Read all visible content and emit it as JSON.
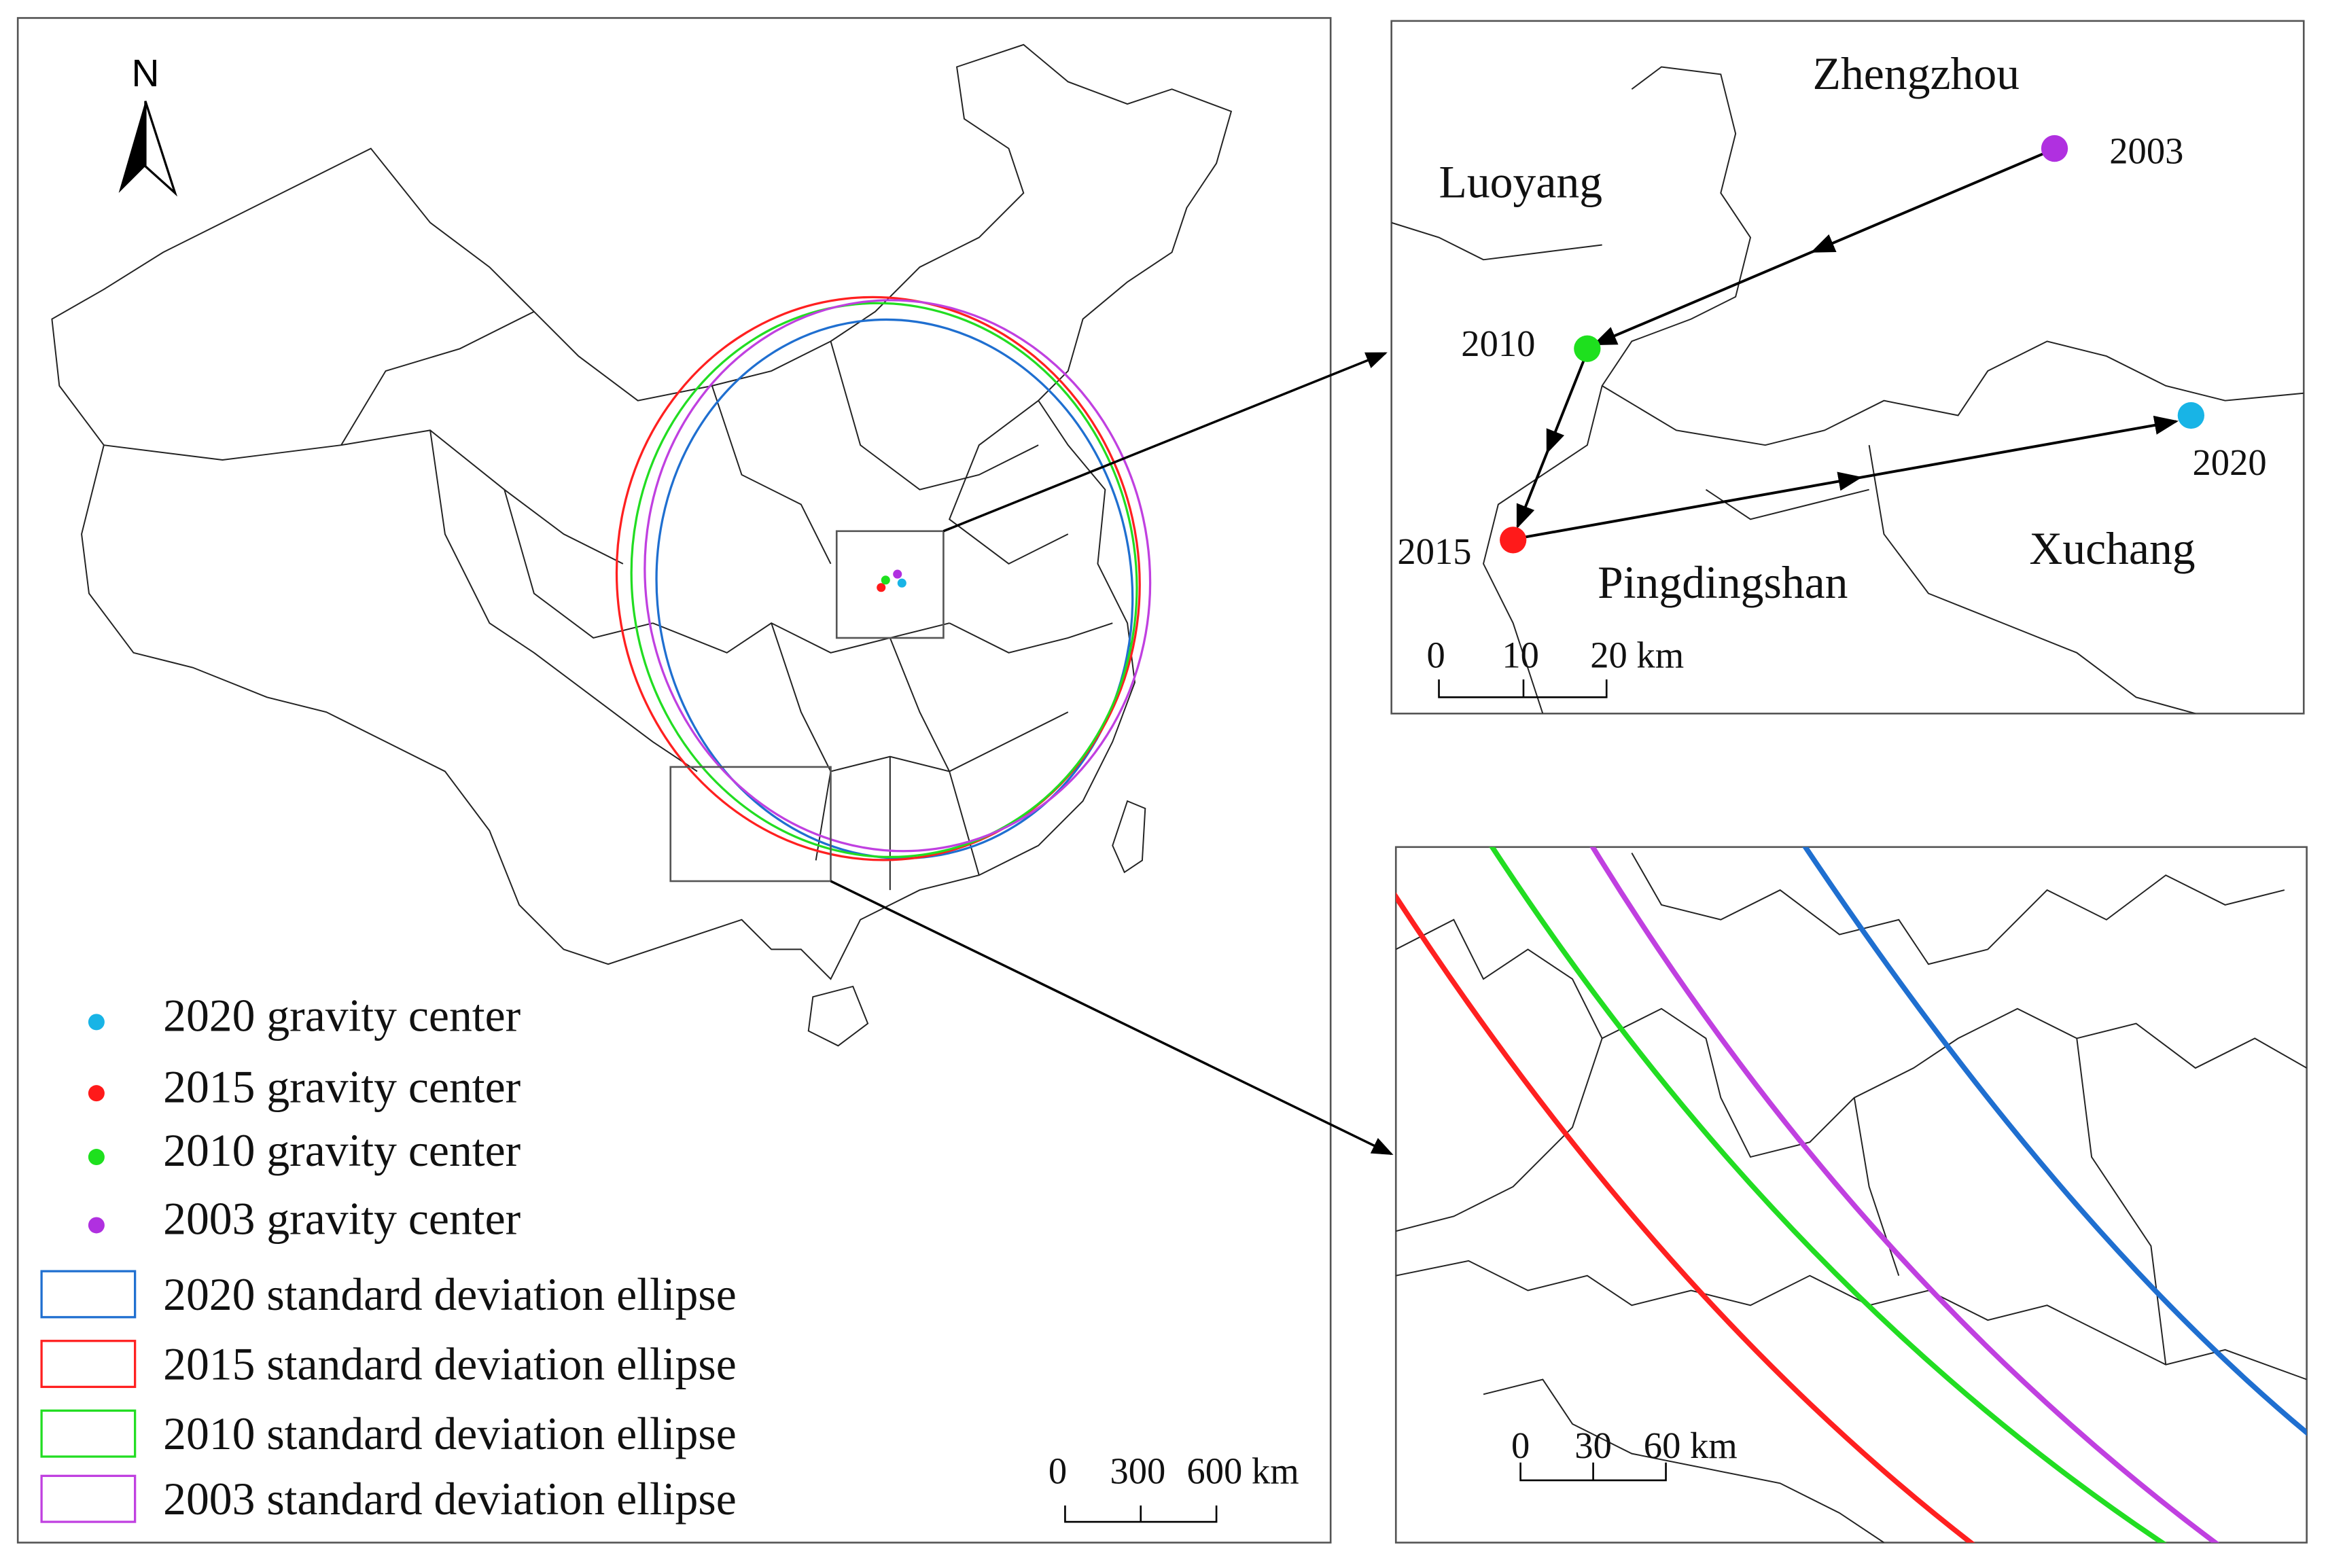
{
  "north_label": "N",
  "legend": {
    "items": [
      {
        "label": "2020 gravity center",
        "color": "#18b4e6"
      },
      {
        "label": "2015 gravity center",
        "color": "#ff1a1a"
      },
      {
        "label": "2010 gravity center",
        "color": "#1ee01e"
      },
      {
        "label": "2003 gravity center",
        "color": "#b030e0"
      },
      {
        "label": "2020 standard deviation ellipse",
        "color": "#1f6fd0"
      },
      {
        "label": "2015 standard deviation ellipse",
        "color": "#ff2020"
      },
      {
        "label": "2010 standard deviation ellipse",
        "color": "#22dd22"
      },
      {
        "label": "2003 standard deviation ellipse",
        "color": "#c040e0"
      }
    ]
  },
  "main_scale": {
    "labels": [
      "0",
      "300",
      "600 km"
    ]
  },
  "inset_top": {
    "cities": [
      "Zhengzhou",
      "Luoyang",
      "Pingdingshan",
      "Xuchang"
    ],
    "points": [
      {
        "label": "2003"
      },
      {
        "label": "2010"
      },
      {
        "label": "2015"
      },
      {
        "label": "2020"
      }
    ],
    "scale": {
      "labels": [
        "0",
        "10",
        "20 km"
      ]
    }
  },
  "inset_bottom": {
    "scale": {
      "labels": [
        "0",
        "30",
        "60 km"
      ]
    }
  }
}
